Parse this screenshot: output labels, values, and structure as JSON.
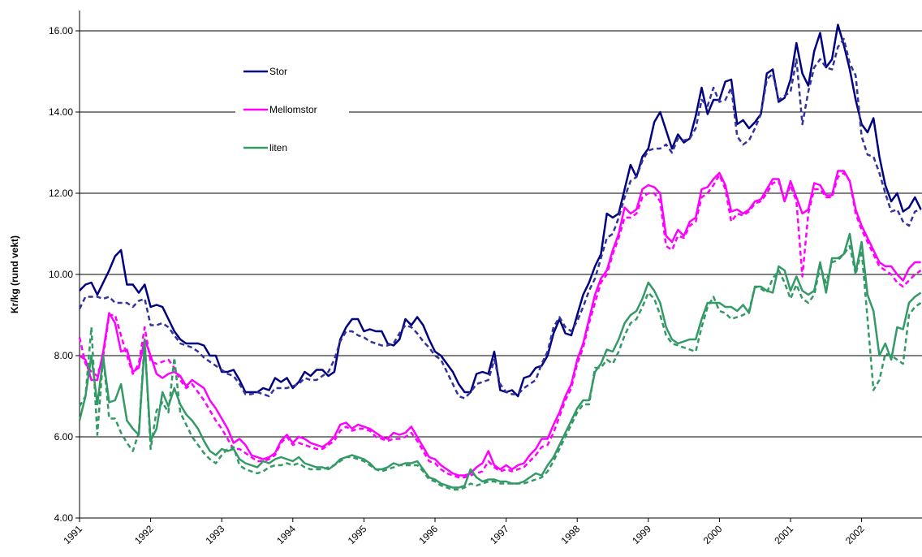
{
  "chart_data": {
    "type": "line",
    "y_label": "Kr/kg (rund vekt)",
    "categories": [
      "1991",
      null,
      null,
      null,
      null,
      null,
      null,
      null,
      null,
      null,
      null,
      null,
      "1992",
      null,
      null,
      null,
      null,
      null,
      null,
      null,
      null,
      null,
      null,
      null,
      "1993",
      null,
      null,
      null,
      null,
      null,
      null,
      null,
      null,
      null,
      null,
      null,
      "1994",
      null,
      null,
      null,
      null,
      null,
      null,
      null,
      null,
      null,
      null,
      null,
      "1995",
      null,
      null,
      null,
      null,
      null,
      null,
      null,
      null,
      null,
      null,
      null,
      "1996",
      null,
      null,
      null,
      null,
      null,
      null,
      null,
      null,
      null,
      null,
      null,
      "1997",
      null,
      null,
      null,
      null,
      null,
      null,
      null,
      null,
      null,
      null,
      null,
      "1998",
      null,
      null,
      null,
      null,
      null,
      null,
      null,
      null,
      null,
      null,
      null,
      "1999",
      null,
      null,
      null,
      null,
      null,
      null,
      null,
      null,
      null,
      null,
      null,
      "2000",
      null,
      null,
      null,
      null,
      null,
      null,
      null,
      null,
      null,
      null,
      null,
      "2001",
      null,
      null,
      null,
      null,
      null,
      null,
      null,
      null,
      null,
      null,
      null,
      "2002",
      null,
      null,
      null,
      null,
      null,
      null,
      null,
      null,
      null,
      null
    ],
    "ylim": [
      4,
      16
    ],
    "yticks": [
      {
        "value": 4,
        "label": "4.00"
      },
      {
        "value": 6,
        "label": "6.00"
      },
      {
        "value": 8,
        "label": "8.00"
      },
      {
        "value": 10,
        "label": "10.00"
      },
      {
        "value": 12,
        "label": "12.00"
      },
      {
        "value": 14,
        "label": "14.00"
      },
      {
        "value": 16,
        "label": "16.00"
      }
    ],
    "grid": true,
    "legend": "top-left",
    "series": [
      {
        "name": "Stor",
        "color": "#000080",
        "values": [
          9.6,
          9.75,
          9.8,
          9.5,
          9.8,
          10.1,
          10.45,
          10.6,
          9.75,
          9.75,
          9.55,
          9.75,
          9.2,
          9.25,
          9.2,
          8.9,
          8.6,
          8.4,
          8.3,
          8.3,
          8.3,
          8.25,
          8.0,
          8.0,
          7.6,
          7.6,
          7.65,
          7.4,
          7.1,
          7.1,
          7.1,
          7.2,
          7.15,
          7.45,
          7.35,
          7.45,
          7.2,
          7.35,
          7.6,
          7.5,
          7.65,
          7.65,
          7.5,
          7.6,
          8.4,
          8.7,
          8.9,
          8.9,
          8.6,
          8.65,
          8.6,
          8.6,
          8.3,
          8.25,
          8.4,
          8.9,
          8.75,
          8.95,
          8.75,
          8.4,
          8.1,
          8.0,
          7.8,
          7.6,
          7.3,
          7.1,
          7.1,
          7.55,
          7.6,
          7.55,
          8.1,
          7.15,
          7.1,
          7.15,
          7.0,
          7.45,
          7.5,
          7.7,
          7.75,
          8.0,
          8.55,
          8.9,
          8.55,
          8.5,
          9.0,
          9.5,
          9.8,
          10.2,
          10.5,
          11.5,
          11.4,
          11.5,
          12.1,
          12.7,
          12.4,
          12.9,
          13.1,
          13.75,
          14.0,
          13.55,
          13.1,
          13.45,
          13.25,
          13.35,
          13.9,
          14.6,
          13.95,
          14.3,
          14.3,
          14.75,
          14.8,
          13.7,
          13.8,
          13.6,
          13.75,
          13.95,
          14.95,
          15.05,
          14.25,
          14.35,
          14.8,
          15.7,
          14.95,
          14.65,
          15.5,
          15.95,
          15.1,
          15.3,
          16.15,
          15.65,
          15.05,
          14.3,
          13.7,
          13.5,
          13.85,
          12.9,
          12.2,
          11.8,
          12.0,
          11.55,
          11.65,
          11.9,
          11.6
        ]
      },
      {
        "color": "#333399",
        "dash": true,
        "values": [
          9.15,
          9.45,
          9.45,
          9.45,
          9.4,
          9.45,
          9.3,
          9.3,
          9.3,
          9.2,
          9.35,
          9.4,
          8.75,
          8.75,
          8.8,
          8.7,
          8.5,
          8.3,
          8.25,
          8.2,
          8.1,
          7.95,
          7.85,
          7.75,
          7.65,
          7.55,
          7.5,
          7.3,
          7.05,
          7.05,
          7.1,
          7.05,
          7.0,
          7.2,
          7.2,
          7.2,
          7.25,
          7.3,
          7.45,
          7.4,
          7.4,
          7.5,
          7.6,
          7.9,
          8.35,
          8.6,
          8.6,
          8.5,
          8.45,
          8.35,
          8.3,
          8.25,
          8.25,
          8.3,
          8.55,
          8.75,
          8.7,
          8.55,
          8.35,
          8.2,
          8.0,
          7.9,
          7.6,
          7.3,
          7.0,
          6.95,
          7.1,
          7.3,
          7.35,
          7.4,
          7.9,
          7.3,
          7.1,
          7.05,
          7.05,
          7.2,
          7.3,
          7.4,
          7.8,
          8.1,
          8.7,
          8.95,
          8.7,
          8.6,
          8.85,
          9.2,
          9.6,
          9.9,
          10.4,
          10.9,
          11.0,
          11.4,
          11.9,
          12.3,
          12.4,
          12.8,
          13.05,
          13.1,
          13.1,
          13.2,
          13.0,
          13.35,
          13.3,
          13.35,
          13.6,
          14.3,
          14.15,
          14.6,
          14.25,
          14.3,
          14.6,
          13.4,
          13.2,
          13.3,
          13.6,
          13.95,
          14.8,
          14.95,
          14.3,
          14.4,
          14.5,
          15.3,
          13.7,
          14.5,
          15.1,
          15.3,
          15.1,
          15.05,
          15.6,
          15.8,
          15.2,
          14.9,
          13.4,
          12.95,
          12.9,
          12.5,
          12.0,
          11.55,
          11.6,
          11.3,
          11.2,
          11.55,
          11.6
        ]
      },
      {
        "name": "Mellomstor",
        "color": "#ff00ff",
        "values": [
          8.0,
          7.9,
          7.4,
          7.4,
          8.1,
          9.05,
          8.8,
          8.1,
          8.15,
          7.6,
          7.7,
          8.4,
          8.0,
          7.55,
          7.45,
          7.55,
          7.6,
          7.5,
          7.25,
          7.4,
          7.3,
          7.2,
          6.9,
          6.7,
          6.45,
          6.2,
          5.85,
          5.95,
          5.8,
          5.55,
          5.5,
          5.45,
          5.5,
          5.6,
          5.9,
          6.05,
          5.85,
          6.0,
          5.95,
          5.85,
          5.8,
          5.75,
          5.85,
          6.0,
          6.3,
          6.35,
          6.2,
          6.3,
          6.25,
          6.2,
          6.1,
          6.0,
          5.95,
          6.1,
          6.05,
          6.1,
          6.25,
          6.0,
          5.75,
          5.5,
          5.45,
          5.3,
          5.2,
          5.1,
          5.05,
          5.05,
          5.1,
          5.25,
          5.35,
          5.65,
          5.3,
          5.2,
          5.3,
          5.2,
          5.3,
          5.35,
          5.55,
          5.7,
          5.95,
          5.95,
          6.3,
          6.6,
          7.0,
          7.3,
          7.9,
          8.3,
          8.9,
          9.5,
          9.9,
          10.1,
          10.6,
          11.0,
          11.65,
          11.5,
          11.6,
          12.1,
          12.2,
          12.15,
          12.0,
          10.95,
          10.8,
          11.1,
          10.95,
          11.3,
          11.4,
          12.1,
          12.15,
          12.35,
          12.5,
          12.2,
          11.55,
          11.6,
          11.5,
          11.6,
          11.8,
          11.85,
          12.1,
          12.35,
          12.35,
          11.8,
          12.3,
          11.9,
          11.5,
          11.6,
          12.25,
          12.2,
          11.95,
          11.95,
          12.55,
          12.55,
          12.3,
          11.6,
          11.2,
          10.9,
          10.6,
          10.3,
          10.2,
          10.2,
          10.0,
          9.85,
          10.15,
          10.3,
          10.3
        ]
      },
      {
        "color": "#ff00ff",
        "dash": true,
        "values": [
          8.45,
          7.8,
          7.6,
          7.5,
          8.0,
          9.0,
          9.0,
          8.5,
          8.0,
          7.55,
          7.8,
          8.7,
          7.85,
          7.8,
          7.85,
          7.9,
          7.7,
          7.4,
          7.2,
          7.3,
          7.1,
          6.9,
          6.65,
          6.4,
          6.2,
          5.95,
          5.7,
          5.7,
          5.6,
          5.5,
          5.4,
          5.4,
          5.45,
          5.55,
          5.85,
          6.0,
          5.8,
          5.85,
          5.8,
          5.75,
          5.7,
          5.7,
          5.8,
          5.9,
          6.15,
          6.25,
          6.15,
          6.2,
          6.2,
          6.15,
          6.0,
          5.95,
          5.9,
          5.95,
          5.95,
          6.0,
          6.1,
          5.9,
          5.65,
          5.4,
          5.35,
          5.2,
          5.1,
          5.05,
          5.0,
          5.0,
          5.05,
          5.1,
          5.15,
          5.4,
          5.25,
          5.15,
          5.2,
          5.15,
          5.2,
          5.25,
          5.4,
          5.55,
          5.75,
          5.8,
          6.1,
          6.5,
          6.9,
          7.2,
          7.8,
          8.2,
          8.8,
          9.3,
          9.8,
          10.0,
          10.5,
          10.9,
          11.4,
          11.4,
          11.5,
          11.9,
          12.0,
          12.0,
          11.8,
          10.7,
          10.6,
          10.95,
          10.9,
          11.2,
          11.3,
          11.9,
          12.0,
          12.2,
          12.45,
          12.1,
          11.3,
          11.5,
          11.45,
          11.55,
          11.75,
          11.8,
          12.0,
          12.25,
          12.3,
          11.8,
          12.2,
          11.8,
          9.95,
          11.5,
          12.1,
          12.1,
          11.9,
          11.9,
          12.4,
          12.5,
          12.3,
          11.5,
          11.1,
          10.8,
          10.5,
          10.2,
          10.1,
          10.0,
          9.8,
          9.7,
          9.85,
          10.0,
          10.1
        ]
      },
      {
        "name": "liten",
        "color": "#339966",
        "values": [
          6.4,
          7.0,
          8.0,
          6.8,
          7.95,
          6.85,
          6.9,
          7.3,
          6.4,
          6.2,
          6.05,
          8.3,
          5.9,
          6.2,
          7.1,
          6.75,
          7.2,
          6.8,
          6.55,
          6.4,
          6.2,
          5.9,
          5.65,
          5.55,
          5.7,
          5.65,
          5.7,
          5.45,
          5.35,
          5.3,
          5.25,
          5.4,
          5.35,
          5.45,
          5.5,
          5.45,
          5.4,
          5.5,
          5.35,
          5.3,
          5.25,
          5.25,
          5.2,
          5.3,
          5.45,
          5.5,
          5.55,
          5.5,
          5.45,
          5.35,
          5.2,
          5.2,
          5.25,
          5.35,
          5.3,
          5.35,
          5.35,
          5.4,
          5.2,
          5.0,
          4.95,
          4.85,
          4.8,
          4.75,
          4.75,
          4.8,
          5.2,
          5.0,
          4.9,
          4.95,
          4.95,
          4.9,
          4.9,
          4.85,
          4.85,
          4.9,
          5.0,
          5.1,
          5.05,
          5.3,
          5.5,
          5.8,
          6.1,
          6.4,
          6.7,
          6.9,
          6.9,
          7.6,
          7.8,
          8.15,
          8.1,
          8.4,
          8.8,
          9.0,
          9.1,
          9.4,
          9.8,
          9.6,
          9.3,
          8.7,
          8.4,
          8.3,
          8.35,
          8.4,
          8.4,
          8.9,
          9.3,
          9.3,
          9.3,
          9.2,
          9.2,
          9.1,
          9.25,
          9.05,
          9.7,
          9.7,
          9.6,
          9.55,
          10.2,
          10.1,
          9.6,
          9.95,
          9.6,
          9.5,
          9.6,
          10.3,
          9.55,
          10.4,
          10.4,
          10.5,
          11.0,
          10.05,
          10.8,
          9.5,
          9.1,
          8.0,
          8.3,
          7.9,
          8.7,
          8.65,
          9.3,
          9.45,
          9.55
        ]
      },
      {
        "color": "#339966",
        "dash": true,
        "values": [
          6.75,
          7.0,
          8.7,
          6.05,
          8.0,
          6.45,
          6.45,
          6.1,
          5.85,
          5.65,
          6.1,
          8.4,
          5.7,
          6.65,
          6.85,
          6.6,
          7.95,
          6.6,
          6.3,
          6.0,
          5.8,
          5.6,
          5.45,
          5.35,
          5.55,
          5.7,
          5.75,
          5.3,
          5.2,
          5.15,
          5.1,
          5.15,
          5.25,
          5.3,
          5.3,
          5.35,
          5.3,
          5.35,
          5.25,
          5.2,
          5.2,
          5.2,
          5.25,
          5.3,
          5.4,
          5.5,
          5.5,
          5.45,
          5.4,
          5.3,
          5.2,
          5.15,
          5.2,
          5.25,
          5.3,
          5.3,
          5.3,
          5.3,
          5.15,
          4.95,
          4.9,
          4.8,
          4.75,
          4.7,
          4.7,
          4.75,
          4.85,
          4.8,
          4.85,
          4.9,
          4.9,
          4.85,
          4.85,
          4.85,
          4.85,
          4.85,
          4.9,
          4.95,
          5.0,
          5.15,
          5.4,
          5.7,
          6.0,
          6.3,
          6.6,
          6.8,
          6.8,
          7.7,
          7.7,
          7.9,
          7.8,
          8.1,
          8.5,
          8.8,
          8.9,
          9.2,
          9.55,
          9.4,
          9.0,
          8.5,
          8.3,
          8.25,
          8.2,
          8.15,
          8.1,
          8.7,
          9.2,
          9.45,
          9.1,
          9.05,
          8.9,
          8.95,
          9.0,
          9.1,
          9.7,
          9.65,
          9.55,
          9.9,
          10.1,
          9.8,
          9.4,
          9.75,
          9.4,
          9.3,
          9.5,
          10.2,
          9.8,
          10.3,
          10.35,
          10.5,
          10.7,
          10.0,
          10.6,
          8.9,
          7.15,
          7.4,
          8.05,
          8.0,
          7.9,
          7.8,
          9.0,
          9.2,
          9.3
        ]
      }
    ]
  }
}
